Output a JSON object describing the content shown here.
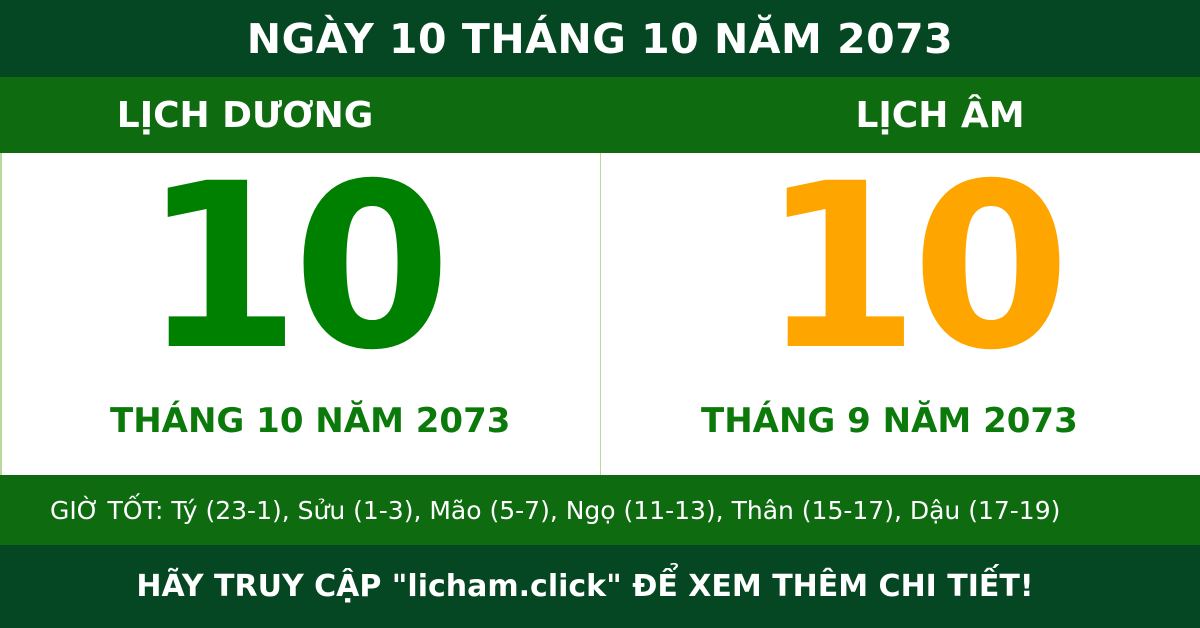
{
  "header": {
    "title": "NGÀY 10 THÁNG 10 NĂM 2073"
  },
  "solar": {
    "label": "LỊCH DƯƠNG",
    "day": "10",
    "month_year": "THÁNG 10 NĂM 2073"
  },
  "lunar": {
    "label": "LỊCH ÂM",
    "day": "10",
    "month_year": "THÁNG 9 NĂM 2073"
  },
  "good_hours": "GIỜ TỐT: Tý (23-1), Sửu (1-3), Mão (5-7), Ngọ (11-13), Thân (15-17), Dậu (17-19)",
  "footer": {
    "cta": "HÃY TRUY CẬP \"licham.click\" ĐỂ XEM THÊM CHI TIẾT!"
  },
  "colors": {
    "dark_green": "#054722",
    "band_green": "#0f6b10",
    "solar_day": "#008000",
    "lunar_day": "#ffa500"
  }
}
